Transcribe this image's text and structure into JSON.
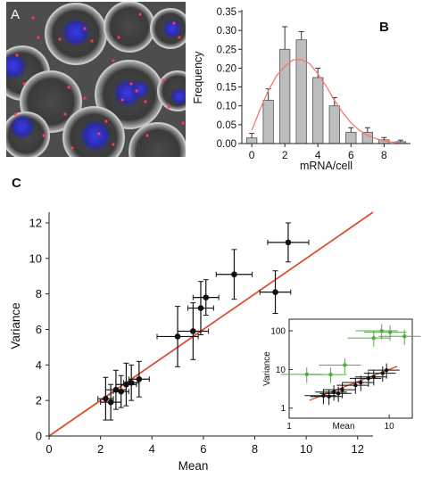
{
  "panels": {
    "a": "A",
    "b": "B",
    "c": "C"
  },
  "chart_data": [
    {
      "panel": "B",
      "type": "bar",
      "xlabel": "mRNA/cell",
      "ylabel": "Frequency",
      "x": [
        0,
        1,
        2,
        3,
        4,
        5,
        6,
        7,
        8,
        9
      ],
      "values": [
        0.015,
        0.115,
        0.25,
        0.275,
        0.175,
        0.1,
        0.03,
        0.03,
        0.01,
        0.005
      ],
      "errors": [
        0.012,
        0.03,
        0.06,
        0.022,
        0.025,
        0.022,
        0.012,
        0.012,
        0.006,
        0.004
      ],
      "fit_curve": {
        "x": [
          0,
          0.5,
          1,
          1.5,
          2,
          2.5,
          3,
          3.5,
          4,
          4.5,
          5,
          5.5,
          6,
          6.5,
          7,
          7.5,
          8,
          8.5,
          9
        ],
        "y": [
          0.035,
          0.09,
          0.14,
          0.18,
          0.205,
          0.222,
          0.223,
          0.212,
          0.185,
          0.152,
          0.115,
          0.082,
          0.055,
          0.035,
          0.022,
          0.013,
          0.007,
          0.004,
          0.002
        ]
      },
      "xlim": [
        -0.6,
        9.6
      ],
      "ylim": [
        0,
        0.35
      ],
      "xticks": [
        0,
        2,
        4,
        6,
        8
      ],
      "yticks": [
        0.0,
        0.05,
        0.1,
        0.15,
        0.2,
        0.25,
        0.3,
        0.35
      ],
      "ytick_labels": [
        "0.00",
        "0.05",
        "0.10",
        "0.15",
        "0.20",
        "0.25",
        "0.30",
        "0.35"
      ]
    },
    {
      "panel": "C",
      "type": "scatter",
      "xlabel": "Mean",
      "ylabel": "Variance",
      "xlim": [
        0,
        12.6
      ],
      "ylim": [
        0,
        12.4
      ],
      "xticks": [
        0,
        2,
        4,
        6,
        8,
        10,
        12
      ],
      "yticks": [
        0,
        2,
        4,
        6,
        8,
        10,
        12
      ],
      "line": {
        "x": [
          0,
          12.6
        ],
        "y": [
          0,
          12.6
        ]
      },
      "points": [
        {
          "x": 2.2,
          "y": 2.1,
          "xerr": 0.3,
          "yerr": 1.2
        },
        {
          "x": 2.4,
          "y": 1.9,
          "xerr": 0.4,
          "yerr": 1.0
        },
        {
          "x": 2.6,
          "y": 2.6,
          "xerr": 0.4,
          "yerr": 1.1
        },
        {
          "x": 2.8,
          "y": 2.5,
          "xerr": 0.3,
          "yerr": 0.9
        },
        {
          "x": 3.0,
          "y": 2.9,
          "xerr": 0.4,
          "yerr": 1.2
        },
        {
          "x": 3.2,
          "y": 3.0,
          "xerr": 0.3,
          "yerr": 1.0
        },
        {
          "x": 3.5,
          "y": 3.2,
          "xerr": 0.4,
          "yerr": 1.0
        },
        {
          "x": 5.0,
          "y": 5.6,
          "xerr": 0.8,
          "yerr": 1.7
        },
        {
          "x": 5.6,
          "y": 5.9,
          "xerr": 0.6,
          "yerr": 1.6
        },
        {
          "x": 5.9,
          "y": 7.2,
          "xerr": 0.5,
          "yerr": 1.5
        },
        {
          "x": 6.1,
          "y": 7.8,
          "xerr": 0.5,
          "yerr": 1.0
        },
        {
          "x": 7.2,
          "y": 9.1,
          "xerr": 0.7,
          "yerr": 1.4
        },
        {
          "x": 8.8,
          "y": 8.1,
          "xerr": 0.6,
          "yerr": 1.2
        },
        {
          "x": 9.3,
          "y": 10.9,
          "xerr": 0.8,
          "yerr": 1.1
        }
      ]
    },
    {
      "panel": "C-inset",
      "type": "scatter",
      "xlabel": "Mean",
      "ylabel": "Variance",
      "xscale": "log",
      "yscale": "log",
      "xlim": [
        1,
        17
      ],
      "ylim": [
        0.55,
        200
      ],
      "xticks": [
        1,
        10
      ],
      "yticks": [
        1,
        10,
        100
      ],
      "line": {
        "x": [
          1.6,
          12
        ],
        "y": [
          1.6,
          12
        ]
      },
      "series": [
        {
          "name": "",
          "color": "#111111",
          "points": [
            {
              "x": 2.2,
              "y": 2.1
            },
            {
              "x": 2.5,
              "y": 2.0
            },
            {
              "x": 2.8,
              "y": 2.6
            },
            {
              "x": 3.1,
              "y": 2.4
            },
            {
              "x": 3.4,
              "y": 3.0
            },
            {
              "x": 4.6,
              "y": 3.9
            },
            {
              "x": 5.2,
              "y": 4.6
            },
            {
              "x": 6.2,
              "y": 5.9
            },
            {
              "x": 7.0,
              "y": 6.4
            },
            {
              "x": 8.6,
              "y": 8.0
            },
            {
              "x": 9.4,
              "y": 9.6
            }
          ]
        },
        {
          "name": "",
          "color": "#55a845",
          "points": [
            {
              "x": 1.5,
              "y": 7.5
            },
            {
              "x": 2.6,
              "y": 7.4
            },
            {
              "x": 3.6,
              "y": 13
            },
            {
              "x": 7.0,
              "y": 65
            },
            {
              "x": 8.4,
              "y": 100
            },
            {
              "x": 10.2,
              "y": 92
            },
            {
              "x": 14.2,
              "y": 72
            }
          ]
        }
      ]
    }
  ]
}
